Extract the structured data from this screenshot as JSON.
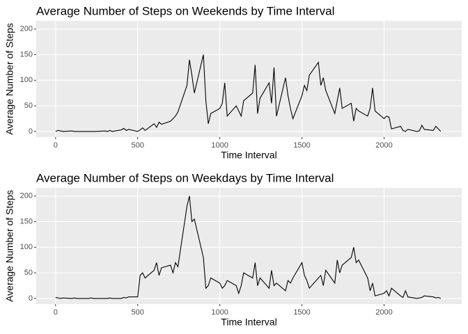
{
  "chart_data": [
    {
      "type": "line",
      "title": "Average Number of Steps on Weekends by Time Interval",
      "x_label": "Time Interval",
      "y_label": "Average Number of Steps",
      "x": [
        0,
        15,
        30,
        45,
        100,
        115,
        130,
        145,
        200,
        215,
        230,
        245,
        300,
        315,
        330,
        345,
        400,
        415,
        430,
        445,
        500,
        515,
        530,
        545,
        600,
        615,
        630,
        645,
        700,
        715,
        730,
        745,
        800,
        815,
        830,
        845,
        900,
        915,
        930,
        945,
        1000,
        1015,
        1030,
        1045,
        1100,
        1115,
        1130,
        1145,
        1200,
        1215,
        1230,
        1245,
        1300,
        1315,
        1330,
        1345,
        1400,
        1415,
        1430,
        1445,
        1500,
        1515,
        1530,
        1545,
        1600,
        1615,
        1630,
        1645,
        1700,
        1715,
        1730,
        1745,
        1800,
        1815,
        1830,
        1845,
        1900,
        1915,
        1930,
        1945,
        2000,
        2015,
        2030,
        2045,
        2100,
        2115,
        2130,
        2145,
        2200,
        2215,
        2230,
        2245,
        2300,
        2315,
        2330,
        2345
      ],
      "series": [
        {
          "color": "#000000",
          "values": [
            0,
            2,
            1,
            0,
            1,
            0,
            0,
            0,
            0,
            0,
            0,
            0,
            1,
            0,
            2,
            0,
            3,
            6,
            2,
            4,
            0,
            3,
            7,
            2,
            15,
            8,
            18,
            14,
            20,
            25,
            30,
            38,
            90,
            140,
            110,
            75,
            150,
            60,
            15,
            35,
            45,
            55,
            95,
            30,
            50,
            40,
            30,
            60,
            75,
            130,
            35,
            65,
            95,
            55,
            125,
            30,
            105,
            70,
            45,
            25,
            70,
            90,
            80,
            110,
            135,
            90,
            105,
            80,
            35,
            60,
            85,
            45,
            55,
            20,
            45,
            40,
            30,
            45,
            85,
            40,
            25,
            30,
            28,
            5,
            10,
            2,
            0,
            4,
            0,
            1,
            12,
            4,
            2,
            10,
            5,
            0
          ]
        }
      ],
      "xlim": [
        -117.75,
        2472.75
      ],
      "ylim": [
        -11,
        216
      ],
      "xticks": [
        0,
        500,
        1000,
        1500,
        2000
      ],
      "yticks": [
        0,
        50,
        100,
        150,
        200
      ]
    },
    {
      "type": "line",
      "title": "Average Number of Steps on Weekdays by Time Interval",
      "x_label": "Time Interval",
      "y_label": "Average Number of Steps",
      "x": [
        0,
        15,
        30,
        45,
        100,
        115,
        130,
        145,
        200,
        215,
        230,
        245,
        300,
        315,
        330,
        345,
        400,
        415,
        430,
        445,
        500,
        515,
        530,
        545,
        600,
        615,
        630,
        645,
        700,
        715,
        730,
        745,
        800,
        815,
        830,
        845,
        900,
        915,
        930,
        945,
        1000,
        1015,
        1030,
        1045,
        1100,
        1115,
        1130,
        1145,
        1200,
        1215,
        1230,
        1245,
        1300,
        1315,
        1330,
        1345,
        1400,
        1415,
        1430,
        1445,
        1500,
        1515,
        1530,
        1545,
        1600,
        1615,
        1630,
        1645,
        1700,
        1715,
        1730,
        1745,
        1800,
        1815,
        1830,
        1845,
        1900,
        1915,
        1930,
        1945,
        2000,
        2015,
        2030,
        2045,
        2100,
        2115,
        2130,
        2145,
        2200,
        2215,
        2230,
        2245,
        2300,
        2315,
        2330,
        2345
      ],
      "series": [
        {
          "color": "#000000",
          "values": [
            2,
            1,
            0,
            1,
            0,
            1,
            0,
            0,
            0,
            1,
            0,
            0,
            0,
            0,
            1,
            0,
            0,
            2,
            1,
            3,
            3,
            45,
            50,
            40,
            55,
            70,
            45,
            60,
            65,
            50,
            70,
            62,
            180,
            200,
            150,
            155,
            80,
            20,
            25,
            40,
            30,
            20,
            25,
            35,
            25,
            10,
            25,
            50,
            40,
            70,
            25,
            40,
            20,
            55,
            25,
            30,
            15,
            35,
            30,
            40,
            70,
            45,
            35,
            20,
            40,
            45,
            25,
            55,
            30,
            75,
            50,
            65,
            80,
            100,
            70,
            75,
            40,
            15,
            30,
            5,
            10,
            15,
            5,
            20,
            5,
            2,
            15,
            3,
            0,
            1,
            2,
            5,
            3,
            1,
            2,
            0
          ]
        }
      ],
      "xlim": [
        -117.75,
        2472.75
      ],
      "ylim": [
        -11,
        216
      ],
      "xticks": [
        0,
        500,
        1000,
        1500,
        2000
      ],
      "yticks": [
        0,
        50,
        100,
        150,
        200
      ]
    }
  ]
}
